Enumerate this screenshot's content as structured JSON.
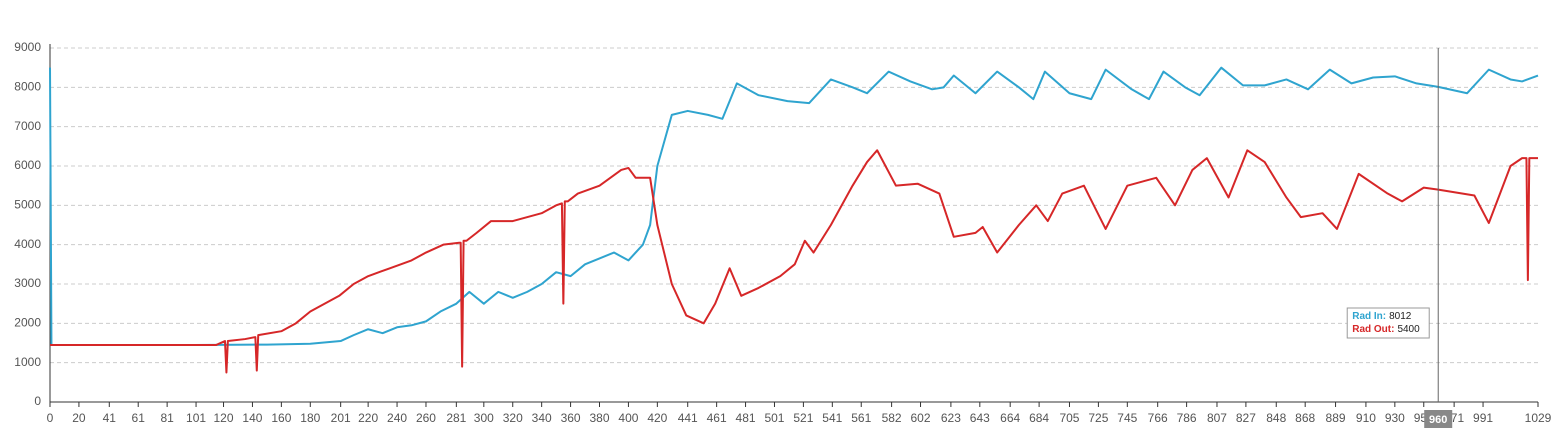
{
  "chart_data": {
    "type": "line",
    "xlim": [
      0,
      1029
    ],
    "ylim": [
      0,
      9000
    ],
    "xticks": [
      0,
      20,
      41,
      61,
      81,
      101,
      120,
      140,
      160,
      180,
      201,
      220,
      240,
      260,
      281,
      300,
      320,
      340,
      360,
      380,
      400,
      420,
      441,
      461,
      481,
      501,
      521,
      541,
      561,
      582,
      602,
      623,
      643,
      664,
      684,
      705,
      725,
      745,
      766,
      786,
      807,
      827,
      848,
      868,
      889,
      910,
      930,
      950,
      971,
      991,
      1029
    ],
    "yticks": [
      0,
      1000,
      2000,
      3000,
      4000,
      5000,
      6000,
      7000,
      8000,
      9000
    ],
    "grid": true,
    "series": [
      {
        "name": "Rad In:",
        "color": "#2fa4cf",
        "x": [
          0,
          1,
          10,
          50,
          100,
          150,
          180,
          201,
          210,
          220,
          230,
          240,
          250,
          260,
          270,
          281,
          290,
          300,
          310,
          320,
          330,
          340,
          350,
          360,
          370,
          380,
          390,
          400,
          410,
          415,
          420,
          430,
          441,
          455,
          465,
          475,
          490,
          510,
          525,
          540,
          555,
          565,
          580,
          595,
          610,
          618,
          625,
          640,
          655,
          670,
          680,
          688,
          705,
          720,
          730,
          748,
          760,
          770,
          785,
          795,
          810,
          825,
          840,
          855,
          870,
          885,
          900,
          915,
          930,
          945,
          960,
          980,
          995,
          1010,
          1018,
          1029
        ],
        "values": [
          8500,
          1450,
          1450,
          1450,
          1450,
          1460,
          1480,
          1550,
          1700,
          1850,
          1750,
          1900,
          1950,
          2050,
          2300,
          2500,
          2800,
          2500,
          2800,
          2650,
          2800,
          3000,
          3300,
          3200,
          3500,
          3650,
          3800,
          3600,
          4000,
          4500,
          6000,
          7300,
          7400,
          7300,
          7200,
          8100,
          7800,
          7650,
          7600,
          8200,
          8000,
          7850,
          8400,
          8150,
          7950,
          8000,
          8300,
          7850,
          8400,
          8000,
          7700,
          8400,
          7850,
          7700,
          8450,
          7950,
          7700,
          8400,
          8000,
          7800,
          8500,
          8050,
          8050,
          8200,
          7950,
          8450,
          8100,
          8250,
          8280,
          8100,
          8012,
          7850,
          8450,
          8200,
          8150,
          8300
        ]
      },
      {
        "name": "Rad Out:",
        "color": "#d62728",
        "x": [
          0,
          50,
          100,
          115,
          121,
          122,
          123,
          135,
          142,
          143,
          144,
          160,
          170,
          180,
          190,
          200,
          210,
          220,
          235,
          250,
          260,
          272,
          283,
          284,
          285,
          286,
          288,
          295,
          305,
          320,
          340,
          350,
          354,
          355,
          356,
          358,
          365,
          380,
          395,
          400,
          405,
          415,
          420,
          430,
          440,
          452,
          460,
          470,
          478,
          490,
          505,
          515,
          522,
          528,
          540,
          555,
          565,
          572,
          585,
          600,
          615,
          625,
          640,
          645,
          655,
          670,
          682,
          690,
          700,
          715,
          730,
          745,
          765,
          778,
          790,
          800,
          815,
          828,
          840,
          855,
          865,
          880,
          890,
          905,
          925,
          935,
          950,
          960,
          985,
          995,
          1010,
          1018,
          1021,
          1022,
          1023,
          1029
        ],
        "values": [
          1450,
          1450,
          1450,
          1450,
          1550,
          750,
          1550,
          1600,
          1650,
          800,
          1700,
          1800,
          2000,
          2300,
          2500,
          2700,
          3000,
          3200,
          3400,
          3600,
          3800,
          4000,
          4050,
          4050,
          900,
          4100,
          4100,
          4300,
          4600,
          4600,
          4800,
          5000,
          5050,
          2500,
          5100,
          5100,
          5300,
          5500,
          5900,
          5950,
          5700,
          5700,
          4500,
          3000,
          2200,
          2000,
          2500,
          3400,
          2700,
          2900,
          3200,
          3500,
          4100,
          3800,
          4500,
          5500,
          6100,
          6400,
          5500,
          5550,
          5300,
          4200,
          4300,
          4450,
          3800,
          4500,
          5000,
          4600,
          5300,
          5500,
          4400,
          5500,
          5700,
          5000,
          5900,
          6200,
          5200,
          6400,
          6100,
          5200,
          4700,
          4800,
          4400,
          5800,
          5300,
          5100,
          5450,
          5400,
          5250,
          4550,
          6000,
          6200,
          6200,
          3100,
          6200,
          6200
        ]
      }
    ],
    "tooltip": {
      "x": 960,
      "values": [
        8012,
        5400
      ]
    }
  }
}
